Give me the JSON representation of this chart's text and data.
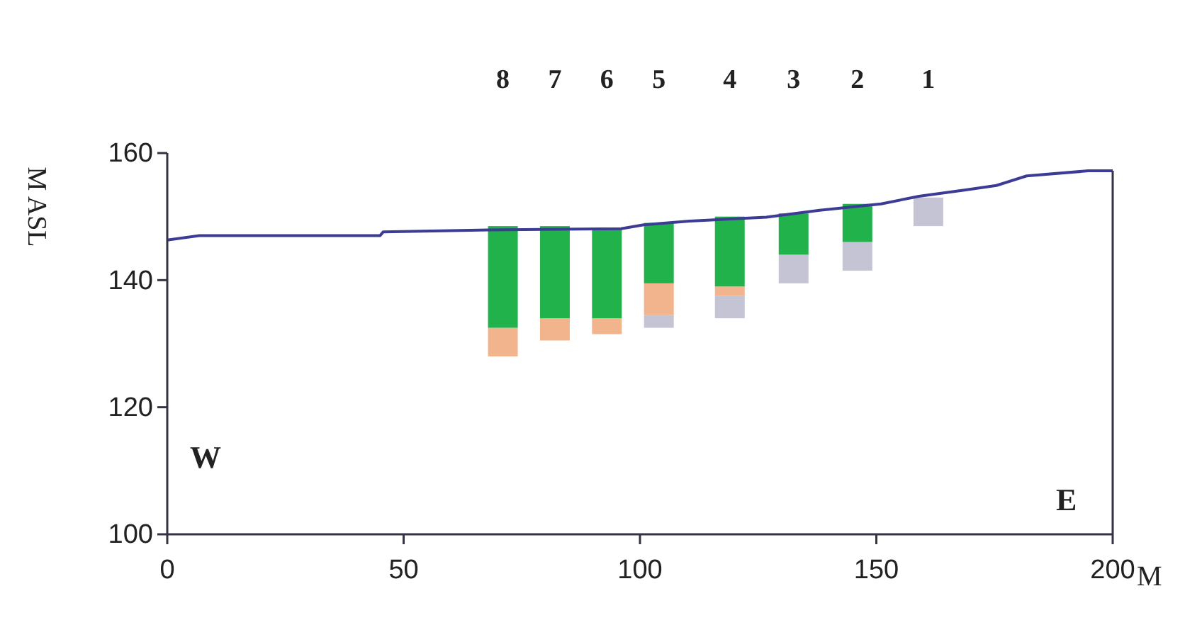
{
  "chart_data": {
    "type": "bar",
    "xlabel": "M",
    "ylabel": "M ASL",
    "x": [
      71,
      82,
      93,
      104,
      119,
      132.5,
      146,
      161
    ],
    "series": [
      {
        "color": "#c4c4d4",
        "base": [
          null,
          null,
          null,
          132.5,
          134,
          139.5,
          141.5,
          148.5
        ],
        "values": [
          null,
          null,
          null,
          2,
          3.5,
          4.5,
          4.5,
          4.5
        ]
      },
      {
        "color": "#f2b48c",
        "base": [
          128,
          130.5,
          131.5,
          134.5,
          137.5,
          null,
          null,
          null
        ],
        "values": [
          4.5,
          3.5,
          2.5,
          5,
          1.5,
          null,
          null,
          null
        ]
      },
      {
        "color": "#22b24c",
        "base": [
          132.5,
          134,
          134,
          139.5,
          139,
          144,
          146,
          null
        ],
        "values": [
          16,
          14.5,
          14,
          9.5,
          11,
          6.5,
          6,
          null
        ]
      },
      {
        "type": "line",
        "color": "#3c3c96",
        "x": [
          0,
          6.8,
          45,
          45.7,
          68,
          96,
          100.8,
          110.5,
          126.7,
          138,
          151,
          159,
          168.9,
          175.4,
          181.8,
          194.8,
          200
        ],
        "values": [
          146.3,
          147,
          147,
          147.6,
          147.9,
          148.1,
          148.7,
          149.3,
          149.9,
          151,
          152,
          153.2,
          154.2,
          154.9,
          156.4,
          157.2,
          157.2
        ]
      }
    ],
    "xlim": [
      0,
      200
    ],
    "xticks": [
      0,
      50,
      100,
      150,
      200
    ],
    "ylim": [
      100,
      160
    ],
    "yticks": [
      100,
      120,
      140,
      160
    ],
    "annotations": [
      "8",
      "7",
      "6",
      "5",
      "4",
      "3",
      "2",
      "1",
      "W",
      "E"
    ]
  }
}
